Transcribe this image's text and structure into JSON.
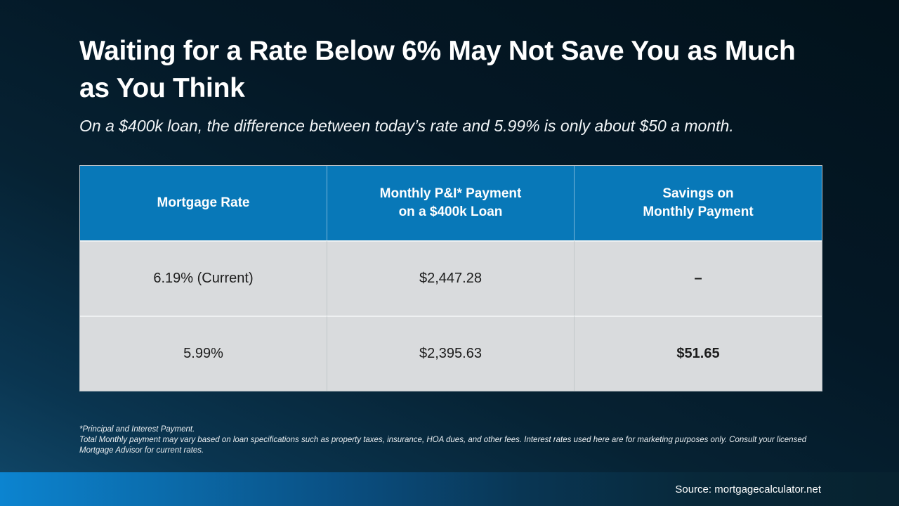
{
  "slide": {
    "title": "Waiting for a Rate Below 6% May Not Save You as Much as You Think",
    "subtitle": "On a $400k loan, the difference between today’s rate and 5.99% is only about $50 a month.",
    "footnote_line1": "*Principal and Interest Payment.",
    "footnote_line2": "Total Monthly payment may vary based on loan specifications such as property taxes, insurance, HOA dues, and other fees. Interest rates used here are for marketing purposes only. Consult your licensed Mortgage Advisor for current rates.",
    "source": "Source: mortgagecalculator.net"
  },
  "table": {
    "headers": [
      "Mortgage Rate",
      "Monthly P&I* Payment\non a $400k Loan",
      "Savings on\nMonthly Payment"
    ],
    "rows": [
      {
        "cells": [
          "6.19% (Current)",
          "$2,447.28",
          "–"
        ]
      },
      {
        "cells": [
          "5.99%",
          "$2,395.63",
          "$51.65"
        ]
      }
    ]
  },
  "colors": {
    "header_blue": "#0878b8",
    "body_gray": "#d9dbdd",
    "bar_blue": "#0c84d0",
    "background_dark": "#02121b"
  }
}
